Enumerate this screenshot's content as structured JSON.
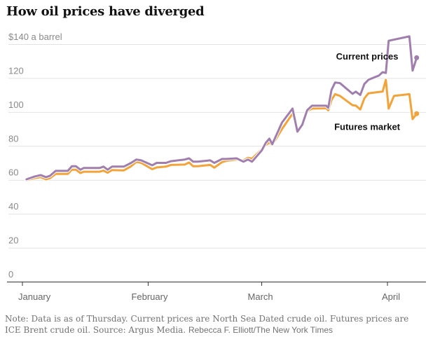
{
  "title": "How oil prices have diverged",
  "note": {
    "text": "Note: Data is as of Thursday. Current prices are North Sea Dated crude oil. Futures prices are ICE Brent crude oil.",
    "source": "Source: Argus Media.",
    "credit": "Rebecca F. Elliott/The New York Times"
  },
  "chart_data": {
    "type": "line",
    "title": "How oil prices have diverged",
    "xlabel": "",
    "ylabel": "$ a barrel",
    "ylim": [
      0,
      140
    ],
    "yticks": [
      0,
      20,
      40,
      60,
      80,
      100,
      120,
      140
    ],
    "ytick_labels": [
      "0",
      "20",
      "40",
      "60",
      "80",
      "100",
      "120",
      "$140 a barrel"
    ],
    "xlim_day_of_year": [
      1,
      100
    ],
    "xticks": [
      {
        "label": "January",
        "day": 1
      },
      {
        "label": "February",
        "day": 32
      },
      {
        "label": "March",
        "day": 60
      },
      {
        "label": "April",
        "day": 91
      }
    ],
    "grid": true,
    "x_unit": "day of year 2022",
    "series": [
      {
        "name": "Current prices",
        "color": "#a07fad",
        "end_dot": true,
        "points": [
          [
            2,
            60.3
          ],
          [
            4,
            62
          ],
          [
            5.5,
            62.8
          ],
          [
            6.8,
            61.6
          ],
          [
            7.8,
            62.4
          ],
          [
            9.2,
            65.3
          ],
          [
            12.2,
            65.3
          ],
          [
            13.2,
            68
          ],
          [
            14.2,
            68
          ],
          [
            15.3,
            66
          ],
          [
            16.1,
            67
          ],
          [
            20,
            67
          ],
          [
            21,
            67.8
          ],
          [
            22,
            66
          ],
          [
            23.1,
            67.8
          ],
          [
            26,
            67.8
          ],
          [
            27.8,
            70
          ],
          [
            29.1,
            72
          ],
          [
            30.3,
            71.5
          ],
          [
            33,
            68.6
          ],
          [
            34.1,
            70
          ],
          [
            36.4,
            70
          ],
          [
            37.6,
            71
          ],
          [
            41,
            72
          ],
          [
            42.1,
            72.7
          ],
          [
            43.1,
            70.7
          ],
          [
            44.2,
            70.7
          ],
          [
            47.3,
            71.5
          ],
          [
            48.3,
            70
          ],
          [
            50.2,
            72.3
          ],
          [
            51.4,
            72.3
          ],
          [
            53.8,
            72.7
          ],
          [
            55.5,
            70.7
          ],
          [
            56.6,
            72
          ],
          [
            57.6,
            70.7
          ],
          [
            60,
            77.3
          ],
          [
            61,
            81.8
          ],
          [
            61.9,
            84.3
          ],
          [
            62.6,
            81
          ],
          [
            65,
            93.8
          ],
          [
            67.6,
            102
          ],
          [
            68.8,
            88.4
          ],
          [
            70,
            92.5
          ],
          [
            71.2,
            101
          ],
          [
            72.4,
            103.7
          ],
          [
            75.9,
            103.7
          ],
          [
            76.4,
            102.5
          ],
          [
            77.2,
            113
          ],
          [
            78.1,
            117.4
          ],
          [
            79.3,
            117
          ],
          [
            82.4,
            110.7
          ],
          [
            83.2,
            112
          ],
          [
            84.3,
            110
          ],
          [
            85.3,
            116.5
          ],
          [
            86.3,
            119
          ],
          [
            88.9,
            121.5
          ],
          [
            89.8,
            123.5
          ],
          [
            90.6,
            123
          ],
          [
            91.3,
            142
          ],
          [
            96.4,
            144.6
          ],
          [
            97.2,
            124.4
          ],
          [
            98.2,
            132
          ]
        ]
      },
      {
        "name": "Futures market",
        "color": "#f2a33a",
        "end_dot": true,
        "points": [
          [
            2,
            59.8
          ],
          [
            4,
            61
          ],
          [
            5.5,
            61.6
          ],
          [
            6.8,
            60.3
          ],
          [
            7.8,
            61
          ],
          [
            9.2,
            63.5
          ],
          [
            12.2,
            63.5
          ],
          [
            13.2,
            66
          ],
          [
            14.2,
            66
          ],
          [
            15.3,
            64
          ],
          [
            16.1,
            64.8
          ],
          [
            20,
            64.8
          ],
          [
            21,
            65.4
          ],
          [
            22,
            64.2
          ],
          [
            23.1,
            65.8
          ],
          [
            26,
            65.6
          ],
          [
            27.8,
            68
          ],
          [
            29.1,
            70.6
          ],
          [
            30.3,
            70
          ],
          [
            33,
            66.3
          ],
          [
            34.1,
            67.3
          ],
          [
            36.4,
            67.8
          ],
          [
            37.6,
            68.8
          ],
          [
            41,
            69
          ],
          [
            42.1,
            70.2
          ],
          [
            43.1,
            68
          ],
          [
            44.2,
            68
          ],
          [
            47.3,
            68.8
          ],
          [
            48.3,
            67.2
          ],
          [
            50.2,
            70.4
          ],
          [
            51.4,
            71.3
          ],
          [
            53.8,
            72
          ],
          [
            55.5,
            71.5
          ],
          [
            56.6,
            73
          ],
          [
            57.6,
            72.5
          ],
          [
            60,
            78
          ],
          [
            61,
            80.5
          ],
          [
            61.9,
            82
          ],
          [
            62.6,
            80.5
          ],
          [
            65,
            90
          ],
          [
            67.6,
            99
          ],
          [
            68.8,
            89.5
          ],
          [
            70,
            92
          ],
          [
            71.2,
            100.5
          ],
          [
            72.4,
            102
          ],
          [
            75.9,
            102.2
          ],
          [
            76.4,
            101
          ],
          [
            77.2,
            107
          ],
          [
            78.1,
            110.5
          ],
          [
            79.3,
            109.5
          ],
          [
            82.4,
            104
          ],
          [
            83.2,
            103.8
          ],
          [
            84.3,
            101.5
          ],
          [
            85.3,
            108
          ],
          [
            86.3,
            111
          ],
          [
            88.9,
            111.8
          ],
          [
            89.8,
            112
          ],
          [
            90.6,
            119
          ],
          [
            91.3,
            102
          ],
          [
            92.6,
            109.5
          ],
          [
            96.4,
            110.5
          ],
          [
            97.2,
            95.8
          ],
          [
            98.2,
            99
          ]
        ]
      }
    ],
    "annotations": [
      {
        "text": "Current prices",
        "series": "Current prices",
        "anchor_day": 86,
        "anchor_value": 131
      },
      {
        "text": "Futures market",
        "series": "Futures market",
        "anchor_day": 86,
        "anchor_value": 89.5
      }
    ]
  }
}
